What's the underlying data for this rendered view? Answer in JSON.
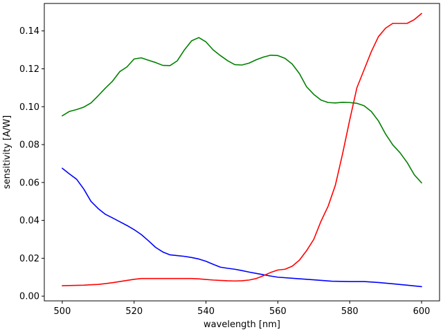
{
  "chart_data": {
    "type": "line",
    "title": "",
    "xlabel": "wavelength [nm]",
    "ylabel": "sensitivity [A/W]",
    "xlim": [
      495,
      605
    ],
    "ylim": [
      -0.0025,
      0.1545
    ],
    "xticks": [
      500,
      520,
      540,
      560,
      580,
      600
    ],
    "xtick_labels": [
      "500",
      "520",
      "540",
      "560",
      "580",
      "600"
    ],
    "yticks": [
      0.0,
      0.02,
      0.04,
      0.06,
      0.08,
      0.1,
      0.12,
      0.14
    ],
    "ytick_labels": [
      "0.00",
      "0.02",
      "0.04",
      "0.06",
      "0.08",
      "0.10",
      "0.12",
      "0.14"
    ],
    "grid": false,
    "legend": "none",
    "series": [
      {
        "color": "#0000ff",
        "x": [
          500,
          502,
          504,
          506,
          508,
          510,
          512,
          514,
          516,
          518,
          520,
          522,
          524,
          526,
          528,
          530,
          532,
          534,
          536,
          538,
          540,
          542,
          544,
          546,
          548,
          550,
          552,
          554,
          556,
          558,
          560,
          565,
          570,
          575,
          580,
          584,
          588,
          592,
          596,
          600
        ],
        "y": [
          0.0675,
          0.0645,
          0.0617,
          0.0565,
          0.05,
          0.0462,
          0.0432,
          0.0413,
          0.0393,
          0.0373,
          0.0351,
          0.0325,
          0.0292,
          0.0257,
          0.0233,
          0.0218,
          0.0214,
          0.021,
          0.0204,
          0.0196,
          0.0184,
          0.0168,
          0.0153,
          0.0147,
          0.0142,
          0.0135,
          0.0127,
          0.012,
          0.0113,
          0.0106,
          0.01,
          0.0093,
          0.0086,
          0.0079,
          0.0077,
          0.0077,
          0.0072,
          0.0065,
          0.0058,
          0.005
        ]
      },
      {
        "color": "#008000",
        "x": [
          500,
          502,
          504,
          506,
          508,
          510,
          512,
          514,
          516,
          518,
          520,
          522,
          524,
          526,
          528,
          530,
          532,
          534,
          536,
          538,
          540,
          542,
          544,
          546,
          548,
          550,
          552,
          554,
          556,
          558,
          560,
          562,
          564,
          566,
          568,
          570,
          572,
          574,
          576,
          578,
          580,
          582,
          584,
          586,
          588,
          590,
          592,
          594,
          596,
          598,
          600
        ],
        "y": [
          0.0952,
          0.0975,
          0.0985,
          0.0998,
          0.102,
          0.1058,
          0.1098,
          0.1135,
          0.1185,
          0.121,
          0.1252,
          0.1258,
          0.1245,
          0.1233,
          0.1218,
          0.1217,
          0.1242,
          0.13,
          0.1348,
          0.1365,
          0.1342,
          0.13,
          0.127,
          0.1243,
          0.1222,
          0.122,
          0.123,
          0.1248,
          0.1262,
          0.1272,
          0.127,
          0.1255,
          0.1225,
          0.1175,
          0.1105,
          0.1065,
          0.1035,
          0.1022,
          0.102,
          0.1023,
          0.1022,
          0.1018,
          0.1005,
          0.0975,
          0.0925,
          0.0855,
          0.0798,
          0.0757,
          0.0705,
          0.064,
          0.0598
        ]
      },
      {
        "color": "#ff0000",
        "x": [
          500,
          502,
          504,
          506,
          508,
          510,
          512,
          514,
          516,
          518,
          520,
          522,
          524,
          526,
          528,
          530,
          532,
          534,
          536,
          538,
          540,
          542,
          544,
          546,
          548,
          550,
          552,
          554,
          556,
          558,
          560,
          562,
          564,
          566,
          568,
          570,
          572,
          574,
          576,
          578,
          580,
          582,
          584,
          586,
          588,
          590,
          592,
          594,
          596,
          598,
          600
        ],
        "y": [
          0.0055,
          0.0056,
          0.0057,
          0.0058,
          0.006,
          0.0062,
          0.0066,
          0.0071,
          0.0077,
          0.0083,
          0.0089,
          0.0093,
          0.0093,
          0.0093,
          0.0093,
          0.0093,
          0.0093,
          0.0093,
          0.0093,
          0.0091,
          0.0088,
          0.0085,
          0.0083,
          0.0081,
          0.008,
          0.0081,
          0.0085,
          0.0093,
          0.0108,
          0.0125,
          0.0138,
          0.0142,
          0.0158,
          0.019,
          0.024,
          0.03,
          0.0395,
          0.0475,
          0.0585,
          0.075,
          0.093,
          0.11,
          0.1195,
          0.129,
          0.137,
          0.1415,
          0.144,
          0.144,
          0.144,
          0.146,
          0.1492
        ]
      }
    ]
  }
}
